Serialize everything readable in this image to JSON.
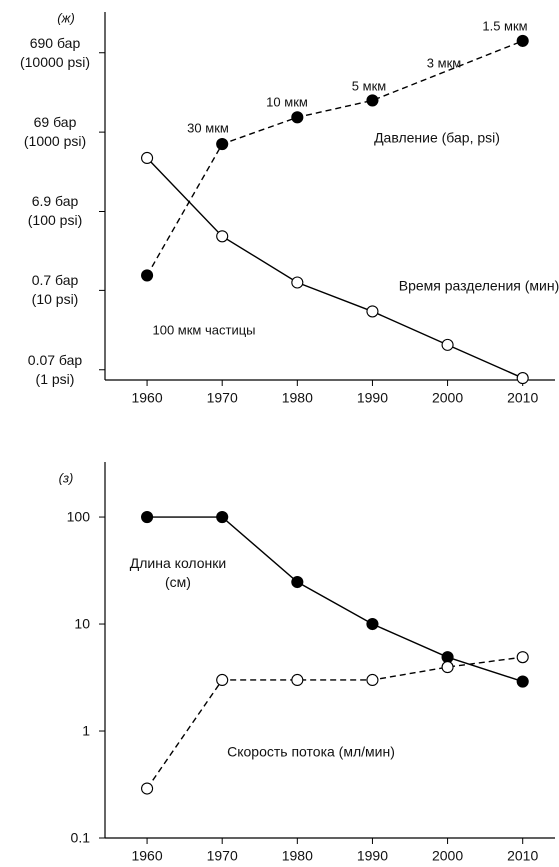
{
  "chart_data": [
    {
      "type": "line",
      "label": "(ж)",
      "scale": "log",
      "xlim": [
        1954.4,
        2014.3
      ],
      "xticks": [
        1960,
        1970,
        1980,
        1990,
        2000,
        2010
      ],
      "ylim": [
        0.052,
        2250
      ],
      "yticks": [
        {
          "value": 0.07,
          "label": "0.07 бар\n(1 psi)"
        },
        {
          "value": 0.7,
          "label": "0.7 бар\n(10 psi)"
        },
        {
          "value": 6.9,
          "label": "6.9 бар\n(100 psi)"
        },
        {
          "value": 69,
          "label": "69 бар\n(1000 psi)"
        },
        {
          "value": 690,
          "label": "690 бар\n(10000 psi)"
        }
      ],
      "series": [
        {
          "name": "Давление (бар, psi)",
          "color": "#000000",
          "marker": "filled",
          "dashed": true,
          "x": [
            1960,
            1970,
            1980,
            1990,
            2010
          ],
          "values": [
            1.08,
            48.8,
            106,
            173,
            973
          ]
        },
        {
          "name": "Время разделения (мин)",
          "color": "#000000",
          "marker": "open",
          "dashed": false,
          "x": [
            1960,
            1970,
            1980,
            1990,
            2000,
            2010
          ],
          "values": [
            32.6,
            3.36,
            0.88,
            0.38,
            0.144,
            0.055
          ]
        }
      ],
      "annotations": [
        "100 мкм частицы",
        "30 мкм",
        "10 мкм",
        "5 мкм",
        "3 мкм",
        "1.5 мкм"
      ]
    },
    {
      "type": "line",
      "label": "(з)",
      "scale": "log",
      "xlim": [
        1954.4,
        2014.3
      ],
      "xticks": [
        1960,
        1970,
        1980,
        1990,
        2000,
        2010
      ],
      "ylim": [
        0.1,
        327
      ],
      "yticks": [
        0.1,
        1,
        10,
        100
      ],
      "series": [
        {
          "name": "Длина колонки\n(см)",
          "color": "#000000",
          "marker": "filled",
          "dashed": false,
          "x": [
            1960,
            1970,
            1980,
            1990,
            2000,
            2010
          ],
          "values": [
            100,
            100,
            24.7,
            10,
            4.9,
            2.9
          ]
        },
        {
          "name": "Скорость потока (мл/мин)",
          "color": "#000000",
          "marker": "open",
          "dashed": true,
          "x": [
            1960,
            1970,
            1980,
            1990,
            2000,
            2010
          ],
          "values": [
            0.29,
            3.0,
            3.0,
            3.0,
            3.96,
            4.9
          ]
        }
      ],
      "annotations": []
    }
  ]
}
